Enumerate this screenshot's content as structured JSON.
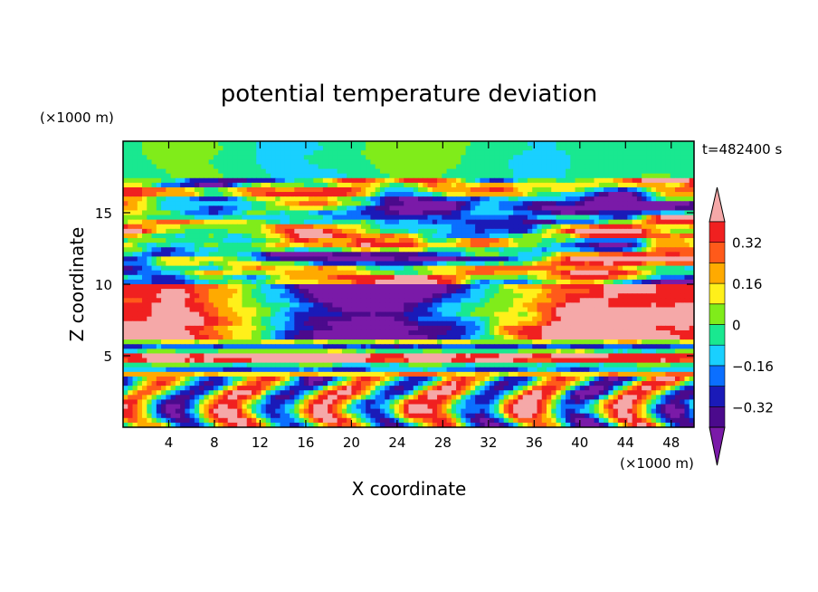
{
  "chart_data": {
    "type": "heatmap",
    "title": "potential temperature deviation",
    "time_label": "t=482400 s",
    "xlabel": "X coordinate",
    "ylabel": "Z coordinate",
    "x_unit": "(×1000 m)",
    "y_unit": "(×1000 m)",
    "xlim": [
      0,
      50
    ],
    "ylim": [
      0,
      20
    ],
    "x_ticks": [
      4,
      8,
      12,
      16,
      20,
      24,
      28,
      32,
      36,
      40,
      44,
      48
    ],
    "y_ticks": [
      5,
      10,
      15
    ],
    "colorbar": {
      "levels": [
        -0.4,
        -0.32,
        -0.24,
        -0.16,
        -0.08,
        0,
        0.08,
        0.16,
        0.24,
        0.32,
        0.4
      ],
      "labeled_levels": [
        "0.32",
        "0.16",
        "0",
        "−0.16",
        "−0.32"
      ],
      "labeled_values": [
        0.32,
        0.16,
        0,
        -0.16,
        -0.32
      ],
      "colors": [
        "#7a1aa8",
        "#4b0a8c",
        "#1a1ab8",
        "#0b6fff",
        "#19d0ff",
        "#19e890",
        "#80ec1a",
        "#fff01a",
        "#ffaa00",
        "#ff5a1a",
        "#f02020",
        "#f5a8a8"
      ],
      "extend": "both"
    },
    "field": {
      "description_bands": [
        {
          "z_range": [
            0,
            3.5
          ],
          "pattern": "vertical plumes",
          "values": "mixed -0.4 to 0.4"
        },
        {
          "z_range": [
            3.5,
            6
          ],
          "pattern": "horizontal layers",
          "values": "alternating"
        },
        {
          "z_range": [
            6,
            10
          ],
          "pattern": "large patches",
          "values": "-0.4 center, 0.4 sides"
        },
        {
          "z_range": [
            10,
            17
          ],
          "pattern": "horizontal streaks",
          "values": "mixed"
        },
        {
          "z_range": [
            17,
            20
          ],
          "pattern": "smooth",
          "values": "near 0"
        }
      ]
    }
  }
}
